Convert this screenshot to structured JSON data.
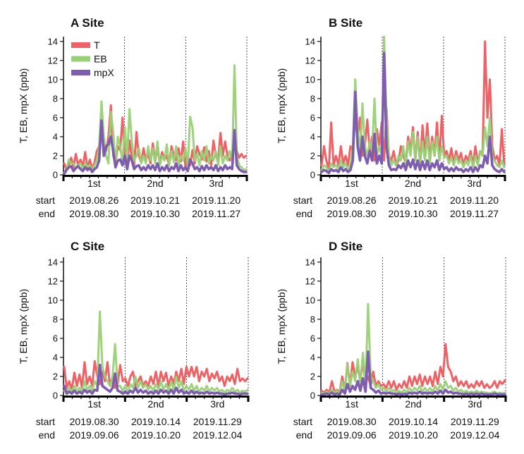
{
  "figure": {
    "row_labels": {
      "start": "start",
      "end": "end"
    },
    "legend": {
      "T": "T",
      "EB": "EB",
      "mpX": "mpX"
    },
    "colors": {
      "T": "#ee6266",
      "EB": "#99d075",
      "mpX": "#7e5cb0"
    }
  },
  "chart_data": [
    {
      "type": "line",
      "title": "A Site",
      "ylabel": "T, EB, mpX (ppb)",
      "ylim": [
        0,
        14.5
      ],
      "yticks": [
        "0",
        "2",
        "4",
        "6",
        "8",
        "10",
        "12",
        "14"
      ],
      "periods": [
        {
          "label": "1st",
          "start": "2019.08.26",
          "end": "2019.08.30"
        },
        {
          "label": "2nd",
          "start": "2019.10.21",
          "end": "2019.10.30"
        },
        {
          "label": "3rd",
          "start": "2019.11.20",
          "end": "2019.11.27"
        }
      ],
      "series": [
        {
          "name": "T",
          "values": [
            1.2,
            0.5,
            1.0,
            1.8,
            0.8,
            2.2,
            1.0,
            1.6,
            0.9,
            2.4,
            0.7,
            1.6,
            0.6,
            1.3,
            2.5,
            3.0,
            5.5,
            3.2,
            2.5,
            4.0,
            7.3,
            2.0,
            1.2,
            3.0,
            2.6,
            6.0,
            2.0,
            1.2,
            3.6,
            1.8,
            1.0,
            4.5,
            2.0,
            1.3,
            2.8,
            1.5,
            2.2,
            1.2,
            3.3,
            1.5,
            2.8,
            1.2,
            2.4,
            1.6,
            2.0,
            1.0,
            3.0,
            2.0,
            1.5,
            2.8,
            1.4,
            3.5,
            0.8,
            2.0,
            1.0,
            2.6,
            1.2,
            3.0,
            2.2,
            1.6,
            2.9,
            1.4,
            2.5,
            1.0,
            3.6,
            2.0,
            1.5,
            4.4,
            2.0,
            3.5,
            2.0,
            1.5,
            2.2,
            4.7,
            2.5,
            1.8,
            2.2,
            1.8,
            2.0
          ]
        },
        {
          "name": "EB",
          "values": [
            0.2,
            0.6,
            1.6,
            1.2,
            1.2,
            0.7,
            1.0,
            1.2,
            0.6,
            1.2,
            0.9,
            1.0,
            0.6,
            1.0,
            1.5,
            3.0,
            7.7,
            4.0,
            2.0,
            1.2,
            6.6,
            4.5,
            1.0,
            4.0,
            3.0,
            1.3,
            5.0,
            1.8,
            6.9,
            3.5,
            1.5,
            2.0,
            2.8,
            1.2,
            2.0,
            1.2,
            3.0,
            1.5,
            2.8,
            1.2,
            3.5,
            1.0,
            2.0,
            1.5,
            3.2,
            1.0,
            2.5,
            1.3,
            3.0,
            1.0,
            2.0,
            1.5,
            2.8,
            1.0,
            6.1,
            5.0,
            1.5,
            2.2,
            1.0,
            2.5,
            1.5,
            3.0,
            1.2,
            2.0,
            1.5,
            2.5,
            1.0,
            3.0,
            1.2,
            2.0,
            1.5,
            2.5,
            1.5,
            11.5,
            2.0,
            1.0,
            0.8,
            0.5,
            0.6
          ]
        },
        {
          "name": "mpX",
          "values": [
            0.1,
            0.5,
            0.8,
            0.9,
            0.4,
            0.7,
            0.9,
            0.6,
            0.4,
            0.8,
            0.5,
            0.7,
            0.3,
            0.6,
            0.8,
            1.5,
            5.7,
            2.0,
            3.0,
            3.2,
            4.0,
            2.5,
            0.8,
            1.5,
            1.6,
            1.0,
            2.0,
            0.6,
            2.0,
            1.5,
            0.6,
            0.9,
            1.0,
            0.5,
            0.8,
            0.5,
            1.0,
            0.6,
            1.0,
            0.5,
            1.2,
            0.4,
            0.8,
            0.5,
            1.0,
            0.4,
            0.8,
            0.6,
            1.2,
            0.4,
            1.0,
            0.5,
            0.8,
            0.4,
            1.6,
            1.2,
            0.6,
            0.8,
            0.4,
            0.9,
            0.5,
            1.0,
            0.6,
            0.8,
            0.5,
            1.0,
            0.4,
            0.8,
            0.5,
            1.0,
            0.6,
            0.8,
            0.6,
            4.7,
            1.0,
            0.6,
            0.4,
            0.3,
            0.3
          ]
        }
      ]
    },
    {
      "type": "line",
      "title": "B Site",
      "ylabel": "T, EB, mpX (ppb)",
      "ylim": [
        0,
        14.5
      ],
      "yticks": [
        "0",
        "2",
        "4",
        "6",
        "8",
        "10",
        "12",
        "14"
      ],
      "periods": [
        {
          "label": "1st",
          "start": "2019.08.26",
          "end": "2019.08.30"
        },
        {
          "label": "2nd",
          "start": "2019.10.21",
          "end": "2019.10.30"
        },
        {
          "label": "3rd",
          "start": "2019.11.20",
          "end": "2019.11.27"
        }
      ],
      "series": [
        {
          "name": "T",
          "values": [
            1.0,
            3.0,
            1.5,
            0.5,
            5.5,
            1.0,
            2.0,
            1.0,
            3.0,
            1.2,
            2.0,
            1.0,
            3.0,
            2.5,
            5.8,
            4.0,
            6.0,
            2.0,
            3.0,
            5.8,
            2.5,
            4.0,
            1.5,
            4.8,
            3.0,
            5.5,
            1.5,
            7.0,
            2.0,
            1.5,
            2.5,
            1.0,
            1.5,
            3.0,
            2.0,
            1.2,
            4.0,
            2.5,
            5.0,
            1.5,
            4.5,
            1.0,
            5.2,
            2.0,
            5.4,
            1.5,
            4.0,
            2.0,
            5.5,
            1.5,
            6.2,
            2.0,
            2.5,
            1.5,
            2.8,
            1.2,
            2.5,
            1.5,
            2.3,
            1.0,
            2.0,
            1.5,
            2.5,
            1.0,
            3.0,
            1.2,
            2.5,
            2.0,
            14.0,
            6.0,
            10.0,
            3.0,
            1.5,
            2.0,
            1.0,
            4.8,
            1.0
          ]
        },
        {
          "name": "EB",
          "values": [
            0.5,
            1.0,
            0.8,
            0.3,
            1.2,
            0.8,
            1.0,
            0.6,
            1.5,
            0.8,
            1.2,
            0.5,
            1.0,
            3.0,
            10.0,
            5.0,
            2.0,
            7.5,
            3.0,
            2.0,
            3.5,
            2.5,
            8.0,
            2.0,
            3.0,
            2.0,
            15.0,
            6.0,
            2.0,
            1.0,
            1.5,
            1.0,
            2.0,
            1.5,
            3.0,
            1.0,
            3.5,
            2.0,
            4.5,
            1.5,
            4.0,
            1.2,
            3.5,
            1.5,
            4.0,
            1.2,
            3.5,
            2.0,
            4.0,
            1.5,
            3.0,
            1.8,
            2.0,
            1.2,
            1.8,
            1.0,
            2.0,
            1.2,
            1.5,
            0.8,
            1.5,
            1.0,
            2.0,
            0.8,
            2.0,
            1.0,
            2.5,
            2.0,
            5.0,
            3.0,
            6.0,
            2.0,
            1.5,
            1.0,
            0.8,
            1.5,
            0.8
          ]
        },
        {
          "name": "mpX",
          "values": [
            0.3,
            0.5,
            0.4,
            0.2,
            0.6,
            0.4,
            0.5,
            0.3,
            0.8,
            0.4,
            0.6,
            0.3,
            0.5,
            1.5,
            8.7,
            3.0,
            1.5,
            4.0,
            2.0,
            1.2,
            2.5,
            1.5,
            4.3,
            1.2,
            2.0,
            1.2,
            12.8,
            3.0,
            1.0,
            0.5,
            0.6,
            0.5,
            1.0,
            0.7,
            1.2,
            0.5,
            1.5,
            0.8,
            1.6,
            0.6,
            1.5,
            0.5,
            1.4,
            0.6,
            1.5,
            0.5,
            1.2,
            0.8,
            1.5,
            0.5,
            1.2,
            0.6,
            0.8,
            0.4,
            0.7,
            0.4,
            0.8,
            0.5,
            0.6,
            0.3,
            0.6,
            0.4,
            0.8,
            0.3,
            0.8,
            0.4,
            1.0,
            0.8,
            2.0,
            1.2,
            4.0,
            1.0,
            0.6,
            0.4,
            0.3,
            0.6,
            0.3
          ]
        }
      ]
    },
    {
      "type": "line",
      "title": "C Site",
      "ylabel": "T, EB, mpX (ppb)",
      "ylim": [
        0,
        14.5
      ],
      "yticks": [
        "0",
        "2",
        "4",
        "6",
        "8",
        "10",
        "12",
        "14"
      ],
      "periods": [
        {
          "label": "1st",
          "start": "2019.08.30",
          "end": "2019.09.06"
        },
        {
          "label": "2nd",
          "start": "2019.10.14",
          "end": "2019.10.20"
        },
        {
          "label": "3rd",
          "start": "2019.11.29",
          "end": "2019.12.04"
        }
      ],
      "series": [
        {
          "name": "T",
          "values": [
            3.0,
            0.8,
            1.5,
            0.6,
            2.4,
            1.0,
            2.2,
            0.8,
            3.5,
            1.2,
            2.0,
            1.0,
            3.6,
            2.0,
            1.2,
            2.5,
            1.5,
            3.5,
            1.0,
            2.0,
            0.8,
            1.2,
            3.2,
            1.5,
            1.8,
            1.0,
            2.0,
            2.5,
            1.0,
            1.5,
            2.0,
            1.0,
            1.5,
            1.0,
            2.0,
            1.2,
            2.5,
            1.0,
            2.5,
            1.5,
            2.4,
            1.0,
            2.0,
            1.2,
            2.5,
            1.5,
            2.8,
            1.2,
            3.0,
            2.0,
            3.0,
            2.0,
            3.0,
            1.5,
            2.5,
            2.0,
            2.8,
            1.5,
            2.3,
            1.8,
            2.5,
            1.5,
            2.0,
            1.0,
            2.0,
            1.5,
            2.2,
            1.2,
            2.8,
            1.5,
            1.8,
            1.5,
            1.8
          ]
        },
        {
          "name": "EB",
          "values": [
            0.5,
            0.3,
            0.8,
            0.4,
            1.0,
            0.5,
            0.8,
            0.4,
            1.5,
            0.6,
            1.0,
            0.5,
            1.5,
            1.0,
            8.8,
            3.0,
            2.0,
            1.5,
            1.0,
            2.0,
            5.4,
            1.0,
            1.0,
            0.5,
            1.0,
            0.4,
            1.2,
            0.8,
            2.0,
            0.8,
            1.5,
            0.8,
            1.2,
            0.6,
            1.0,
            0.5,
            1.2,
            0.6,
            1.5,
            0.6,
            1.2,
            0.5,
            1.5,
            0.6,
            2.0,
            0.8,
            1.5,
            0.5,
            1.0,
            0.6,
            1.2,
            0.5,
            1.0,
            0.4,
            0.8,
            0.5,
            1.0,
            0.4,
            0.8,
            0.5,
            0.8,
            0.4,
            0.6,
            0.3,
            0.6,
            0.4,
            0.8,
            0.4,
            0.6,
            0.3,
            0.5,
            0.4,
            0.6
          ]
        },
        {
          "name": "mpX",
          "values": [
            1.0,
            0.2,
            0.4,
            0.2,
            0.5,
            0.2,
            0.4,
            0.2,
            0.6,
            0.3,
            0.5,
            0.2,
            0.6,
            0.5,
            3.2,
            1.0,
            0.8,
            0.6,
            0.4,
            0.8,
            2.3,
            0.5,
            0.4,
            0.2,
            0.4,
            0.2,
            0.5,
            0.3,
            0.8,
            0.3,
            0.6,
            0.3,
            0.5,
            0.2,
            0.4,
            0.2,
            0.5,
            0.2,
            0.6,
            0.3,
            0.5,
            0.2,
            0.6,
            0.2,
            0.8,
            0.3,
            0.6,
            0.2,
            0.4,
            0.2,
            0.5,
            0.2,
            0.4,
            0.2,
            0.3,
            0.2,
            0.4,
            0.2,
            0.3,
            0.2,
            0.3,
            0.2,
            0.2,
            0.1,
            0.2,
            0.2,
            0.3,
            0.2,
            0.2,
            0.1,
            0.2,
            0.2,
            0.2
          ]
        }
      ]
    },
    {
      "type": "line",
      "title": "D Site",
      "ylabel": "T, EB, mpX (ppb)",
      "ylim": [
        0,
        14.5
      ],
      "yticks": [
        "0",
        "2",
        "4",
        "6",
        "8",
        "10",
        "12",
        "14"
      ],
      "periods": [
        {
          "label": "1st",
          "start": "2019.08.30",
          "end": "2019.09.06"
        },
        {
          "label": "2nd",
          "start": "2019.10.14",
          "end": "2019.10.20"
        },
        {
          "label": "3rd",
          "start": "2019.11.29",
          "end": "2019.12.04"
        }
      ],
      "series": [
        {
          "name": "T",
          "values": [
            0.5,
            0.3,
            0.6,
            0.3,
            1.5,
            0.4,
            0.6,
            0.3,
            2.0,
            0.5,
            3.4,
            1.0,
            3.5,
            2.0,
            3.0,
            1.5,
            3.6,
            1.2,
            2.0,
            1.0,
            2.5,
            1.0,
            1.5,
            1.0,
            1.2,
            0.8,
            1.5,
            0.8,
            1.5,
            0.6,
            1.2,
            0.8,
            1.5,
            0.8,
            2.0,
            1.0,
            2.0,
            1.2,
            2.2,
            1.0,
            2.0,
            1.2,
            2.0,
            1.0,
            2.5,
            1.2,
            3.0,
            2.0,
            5.4,
            3.0,
            2.5,
            1.5,
            2.0,
            1.0,
            1.5,
            1.0,
            1.5,
            0.8,
            1.2,
            0.8,
            1.5,
            1.0,
            1.5,
            0.8,
            1.2,
            0.8,
            1.0,
            1.5,
            0.8,
            1.5,
            1.2,
            1.6
          ]
        },
        {
          "name": "EB",
          "values": [
            0.3,
            0.2,
            0.4,
            0.2,
            0.6,
            0.3,
            0.5,
            0.2,
            1.5,
            0.5,
            3.3,
            1.0,
            2.5,
            1.5,
            3.8,
            1.2,
            4.5,
            1.0,
            9.6,
            2.0,
            1.5,
            0.8,
            1.2,
            0.6,
            0.8,
            0.4,
            0.8,
            0.4,
            0.6,
            0.3,
            0.5,
            0.3,
            0.6,
            0.3,
            0.8,
            0.4,
            0.8,
            0.5,
            1.0,
            0.4,
            0.8,
            0.4,
            0.8,
            0.4,
            1.0,
            0.5,
            1.2,
            0.6,
            1.5,
            0.8,
            1.0,
            0.5,
            0.8,
            0.4,
            0.6,
            0.3,
            0.5,
            0.3,
            0.4,
            0.3,
            0.5,
            0.3,
            0.4,
            0.3,
            0.3,
            0.2,
            0.3,
            0.4,
            0.2,
            0.3,
            0.2,
            0.3
          ]
        },
        {
          "name": "mpX",
          "values": [
            0.1,
            0.1,
            0.2,
            0.1,
            0.3,
            0.1,
            0.2,
            0.1,
            0.6,
            0.2,
            1.2,
            0.4,
            1.0,
            0.6,
            1.5,
            0.5,
            1.8,
            0.4,
            4.6,
            0.8,
            0.6,
            0.3,
            0.5,
            0.2,
            0.3,
            0.2,
            0.3,
            0.2,
            0.2,
            0.1,
            0.2,
            0.1,
            0.2,
            0.1,
            0.3,
            0.2,
            0.3,
            0.2,
            0.4,
            0.2,
            0.3,
            0.2,
            0.3,
            0.2,
            0.4,
            0.2,
            0.5,
            0.2,
            0.6,
            0.3,
            0.4,
            0.2,
            0.3,
            0.2,
            0.2,
            0.1,
            0.2,
            0.1,
            0.2,
            0.1,
            0.2,
            0.1,
            0.2,
            0.1,
            0.1,
            0.1,
            0.1,
            0.2,
            0.1,
            0.1,
            0.1,
            0.1
          ]
        }
      ]
    }
  ]
}
